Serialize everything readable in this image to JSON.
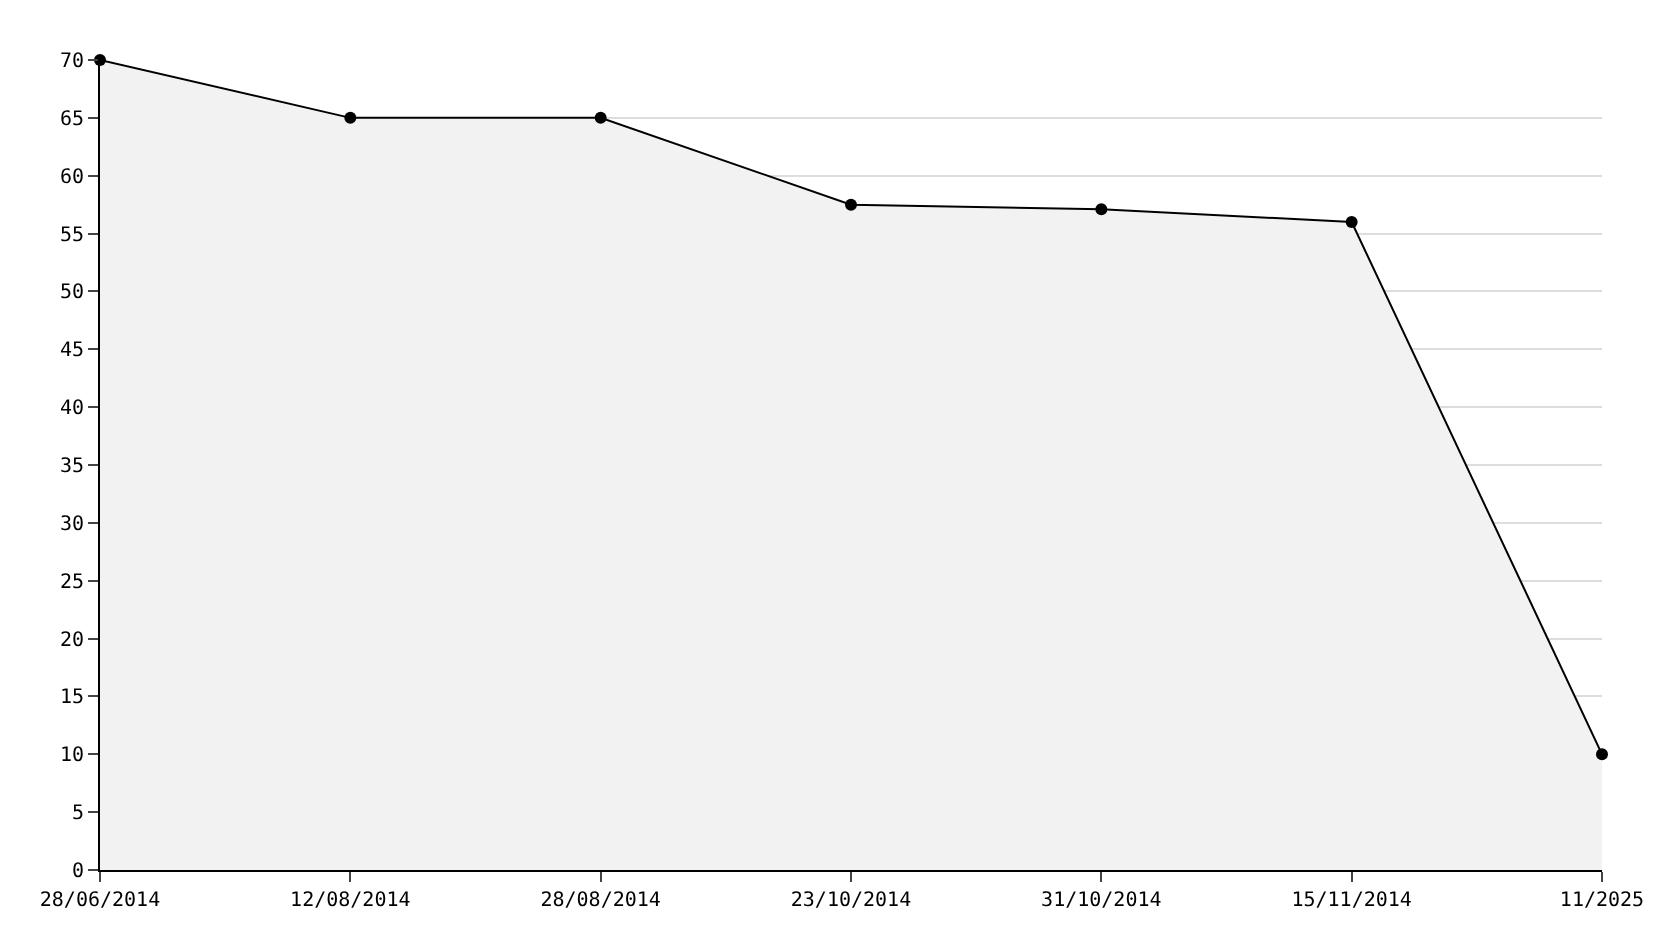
{
  "chart_data": {
    "type": "area",
    "categories": [
      "28/06/2014",
      "12/08/2014",
      "28/08/2014",
      "23/10/2014",
      "31/10/2014",
      "15/11/2014",
      "11/2025"
    ],
    "values": [
      70,
      65,
      65,
      57.5,
      57.1,
      56,
      10
    ],
    "color": "#000000",
    "ylim": [
      0,
      70
    ],
    "yticks": [
      0,
      5,
      10,
      15,
      20,
      25,
      30,
      35,
      40,
      45,
      50,
      55,
      60,
      65,
      70
    ],
    "grid": "y",
    "marker": "circle",
    "line_style": "solid",
    "legend": false
  }
}
